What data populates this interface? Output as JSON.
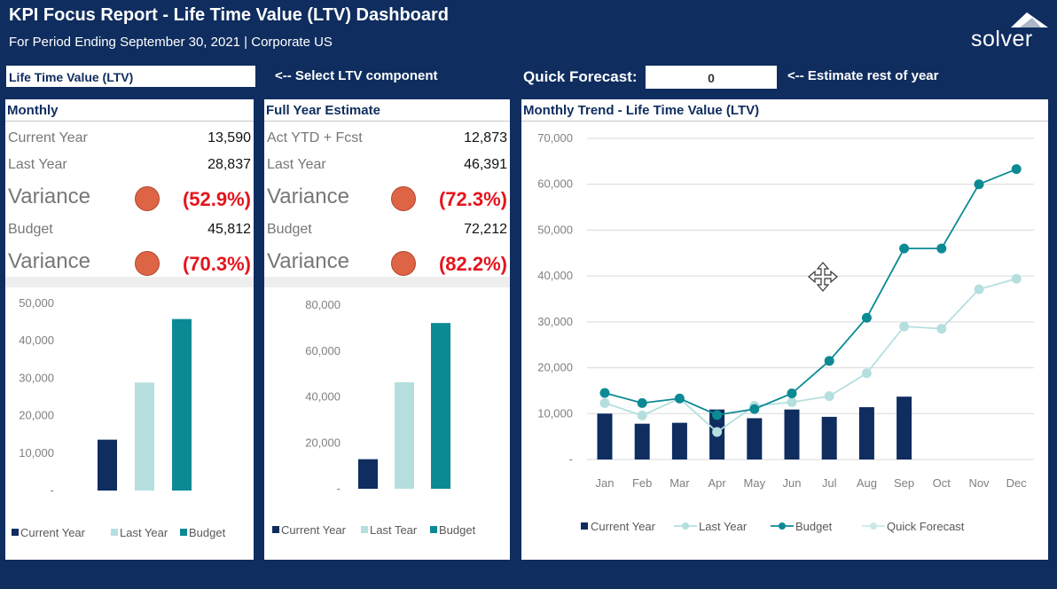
{
  "header": {
    "title": "KPI Focus Report - Life Time Value (LTV) Dashboard",
    "subtitle": "For Period Ending September 30, 2021 | Corporate US"
  },
  "logo": {
    "text": "solver",
    "icon": "solver-mountain-icon"
  },
  "selector": {
    "value": "Life Time Value (LTV)",
    "hint": "<-- Select LTV component"
  },
  "quick_forecast": {
    "label": "Quick Forecast:",
    "value": "0",
    "hint": "<-- Estimate rest of year"
  },
  "colors": {
    "current_year": "#0f2d5f",
    "last_year": "#b5dfdf",
    "budget": "#0b8a94",
    "quick_forecast": "#c8e9e6",
    "variance_negative": "#e5141c",
    "status_dot": "#de6446"
  },
  "monthly": {
    "title": "Monthly",
    "rows": [
      {
        "label": "Current Year",
        "value": "13,590"
      },
      {
        "label": "Last Year",
        "value": "28,837"
      },
      {
        "label": "Budget",
        "value": "45,812"
      }
    ],
    "variance_ly": {
      "label": "Variance",
      "status": "red-dot",
      "value": "(52.9%)"
    },
    "variance_budget": {
      "label": "Variance",
      "status": "red-dot",
      "value": "(70.3%)"
    }
  },
  "full_year": {
    "title": "Full Year Estimate",
    "rows": [
      {
        "label": "Act YTD + Fcst",
        "value": "12,873"
      },
      {
        "label": "Last Year",
        "value": "46,391"
      },
      {
        "label": "Budget",
        "value": "72,212"
      }
    ],
    "variance_ly": {
      "label": "Variance",
      "status": "red-dot",
      "value": "(72.3%)"
    },
    "variance_budget": {
      "label": "Variance",
      "status": "red-dot",
      "value": "(82.2%)"
    }
  },
  "trend": {
    "title": "Monthly Trend - Life Time Value (LTV)"
  },
  "chart_data": [
    {
      "type": "bar",
      "categories": [
        "Current Year",
        "Last Year",
        "Budget"
      ],
      "values": [
        13590,
        28837,
        45812
      ],
      "ylim": [
        0,
        50000
      ],
      "yticks": [
        "-",
        "10,000",
        "20,000",
        "30,000",
        "40,000",
        "50,000"
      ],
      "legend": [
        "Current Year",
        "Last Year",
        "Budget"
      ],
      "legend_position": "bottom",
      "grid": false
    },
    {
      "type": "bar",
      "categories": [
        "Current Year",
        "Last Tear",
        "Budget"
      ],
      "values": [
        12873,
        46391,
        72212
      ],
      "ylim": [
        0,
        80000
      ],
      "yticks": [
        "-",
        "20,000",
        "40,000",
        "60,000",
        "80,000"
      ],
      "legend": [
        "Current Year",
        "Last Tear",
        "Budget"
      ],
      "legend_position": "bottom",
      "grid": false
    },
    {
      "type": "line",
      "categories": [
        "Jan",
        "Feb",
        "Mar",
        "Apr",
        "May",
        "Jun",
        "Jul",
        "Aug",
        "Sep",
        "Oct",
        "Nov",
        "Dec"
      ],
      "ylim": [
        0,
        70000
      ],
      "yticks": [
        "-",
        "10,000",
        "20,000",
        "30,000",
        "40,000",
        "50,000",
        "60,000",
        "70,000"
      ],
      "grid": true,
      "legend_position": "bottom",
      "series": [
        {
          "name": "Current Year",
          "type": "bar",
          "values": [
            10000,
            7800,
            8000,
            10900,
            9000,
            10900,
            9300,
            11400,
            13700,
            null,
            null,
            null
          ]
        },
        {
          "name": "Last Year",
          "type": "line",
          "values": [
            12300,
            9600,
            13300,
            6000,
            11700,
            12500,
            13800,
            18800,
            29000,
            28500,
            37100,
            39400
          ]
        },
        {
          "name": "Budget",
          "type": "line",
          "values": [
            14500,
            12300,
            13300,
            9700,
            11000,
            14400,
            21500,
            30900,
            46000,
            46000,
            60000,
            63300
          ]
        },
        {
          "name": "Quick Forecast",
          "type": "line",
          "values": [
            null,
            null,
            null,
            null,
            null,
            null,
            null,
            null,
            null,
            null,
            null,
            null
          ]
        }
      ]
    }
  ]
}
